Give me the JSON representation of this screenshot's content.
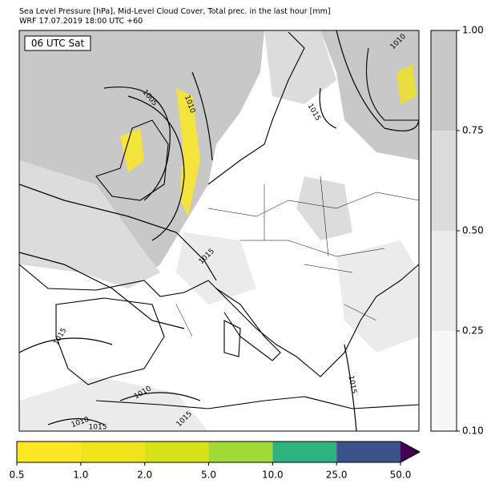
{
  "header": {
    "line1": "Sea Level Pressure [hPa], Mid-Level Cloud Cover, Total prec. in the last hour [mm]",
    "line2": "WRF 17.07.2019 18:00 UTC +60"
  },
  "map": {
    "time_label": "06 UTC Sat",
    "contour_labels": [
      "1010",
      "1005",
      "1010",
      "1015",
      "1015",
      "1015",
      "1015",
      "1010",
      "1010",
      "1015",
      "1015"
    ]
  },
  "cloud_colorbar": {
    "colors": [
      "#f7f7f7",
      "#ebebeb",
      "#dcdcdc",
      "#c8c8c8"
    ],
    "ticks": [
      {
        "value": 0.1,
        "label": "0.10"
      },
      {
        "value": 0.25,
        "label": "0.25"
      },
      {
        "value": 0.5,
        "label": "0.50"
      },
      {
        "value": 0.75,
        "label": "0.75"
      },
      {
        "value": 1,
        "label": "1.00"
      }
    ]
  },
  "precip_colorbar": {
    "colors": [
      "#fde725",
      "#f0e51c",
      "#d8e219",
      "#a0da39",
      "#2eb37c",
      "#3b528b"
    ],
    "extend_color": "#440154",
    "ticks": [
      {
        "value": 0.5,
        "label": "0.5"
      },
      {
        "value": 1,
        "label": "1.0"
      },
      {
        "value": 2,
        "label": "2.0"
      },
      {
        "value": 5,
        "label": "5.0"
      },
      {
        "value": 10,
        "label": "10.0"
      },
      {
        "value": 25,
        "label": "25.0"
      },
      {
        "value": 50,
        "label": "50.0"
      }
    ]
  }
}
